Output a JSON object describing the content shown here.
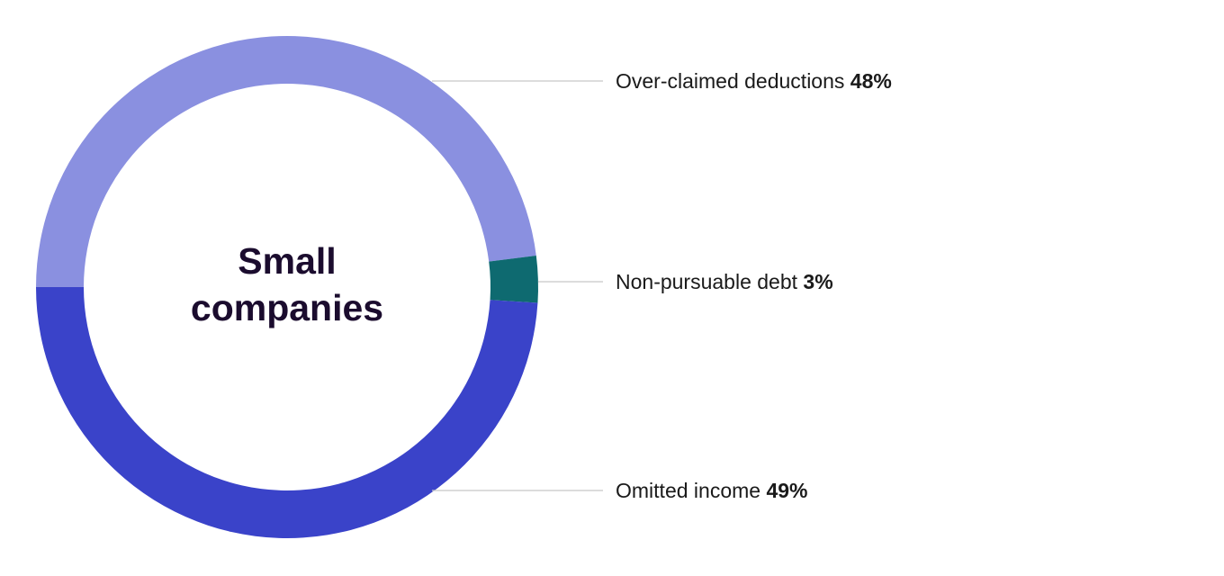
{
  "chart_data": {
    "type": "pie",
    "variant": "donut",
    "title": "Small companies",
    "title_lines": [
      "Small",
      "companies"
    ],
    "unit": "%",
    "legend": "right, leader lines",
    "slices": [
      {
        "label": "Over-claimed deductions",
        "value": 48,
        "value_label": "48%",
        "color": "#8a90e0"
      },
      {
        "label": "Non-pursuable debt",
        "value": 3,
        "value_label": "3%",
        "color": "#0e6a70"
      },
      {
        "label": "Omitted income",
        "value": 49,
        "value_label": "49%",
        "color": "#3a43c9"
      }
    ]
  }
}
